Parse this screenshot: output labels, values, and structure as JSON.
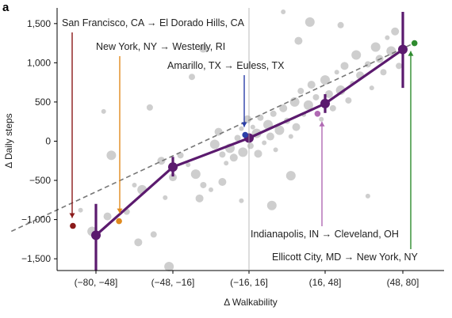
{
  "panel_label": "a",
  "chart_data": {
    "type": "line",
    "title": "",
    "xlabel": "Δ Walkability",
    "ylabel": "Δ Daily steps",
    "categories": [
      "(−80, −48]",
      "(−48, −16]",
      "(−16, 16]",
      "(16, 48]",
      "(48, 80]"
    ],
    "ylim": [
      -1650,
      1700
    ],
    "yticks": [
      -1500,
      -1000,
      -500,
      0,
      500,
      1000,
      1500
    ],
    "ytick_labels": [
      "−1,500",
      "−1,000",
      "−500",
      "0",
      "500",
      "1,000",
      "1,500"
    ],
    "grid": false,
    "series": [
      {
        "values": [
          -1200,
          -330,
          40,
          480,
          1170
        ],
        "ci_low": [
          -1650,
          -450,
          0,
          360,
          680
        ],
        "ci_high": [
          -800,
          -200,
          80,
          600,
          1650
        ],
        "color": "#5b1a6e"
      }
    ],
    "trend_line": {
      "style": "dashed",
      "color": "#777777",
      "x": [
        -1.1,
        4.1
      ],
      "y": [
        -1150,
        1230
      ]
    },
    "annotations": [
      {
        "text": "San Francisco, CA → El Dorado Hills, CA",
        "point": {
          "x": -0.3,
          "y": -1080
        },
        "color": "#8b1a1a"
      },
      {
        "text": "New York, NY → Westerly, RI",
        "point": {
          "x": 0.3,
          "y": -1020
        },
        "color": "#e08a1e"
      },
      {
        "text": "Amarillo, TX → Euless, TX",
        "point": {
          "x": 1.95,
          "y": 80
        },
        "color": "#2b3fa8"
      },
      {
        "text": "Indianapolis, IN → Cleveland, OH",
        "point": {
          "x": 2.9,
          "y": 350
        },
        "color": "#b06ab3"
      },
      {
        "text": "Ellicott City, MD → New York, NY",
        "point": {
          "x": 4.15,
          "y": 1250
        },
        "color": "#2e8b2e"
      }
    ],
    "scatter_background": {
      "color": "#bdbdbd",
      "points": [
        [
          -0.2,
          -880
        ],
        [
          -0.05,
          -1150
        ],
        [
          0.15,
          -960
        ],
        [
          0.4,
          -900
        ],
        [
          0.5,
          -560
        ],
        [
          0.6,
          -620
        ],
        [
          0.55,
          -1290
        ],
        [
          0.75,
          -1190
        ],
        [
          0.9,
          -720
        ],
        [
          0.95,
          -1600
        ],
        [
          1.0,
          -460
        ],
        [
          0.7,
          430
        ],
        [
          0.1,
          380
        ],
        [
          0.2,
          -180
        ],
        [
          0.85,
          -250
        ],
        [
          1.1,
          -180
        ],
        [
          1.2,
          -300
        ],
        [
          1.3,
          -420
        ],
        [
          1.35,
          -730
        ],
        [
          1.4,
          -560
        ],
        [
          1.5,
          -620
        ],
        [
          1.55,
          -40
        ],
        [
          1.6,
          120
        ],
        [
          1.65,
          -170
        ],
        [
          1.7,
          -280
        ],
        [
          1.75,
          -90
        ],
        [
          1.8,
          -210
        ],
        [
          1.85,
          40
        ],
        [
          1.9,
          160
        ],
        [
          1.92,
          -140
        ],
        [
          1.98,
          280
        ],
        [
          2.02,
          -60
        ],
        [
          2.05,
          180
        ],
        [
          2.1,
          100
        ],
        [
          2.12,
          -160
        ],
        [
          2.15,
          300
        ],
        [
          2.2,
          -20
        ],
        [
          2.25,
          210
        ],
        [
          2.28,
          60
        ],
        [
          2.32,
          350
        ],
        [
          2.35,
          -110
        ],
        [
          2.4,
          140
        ],
        [
          2.45,
          420
        ],
        [
          2.5,
          260
        ],
        [
          2.55,
          60
        ],
        [
          2.6,
          500
        ],
        [
          2.62,
          180
        ],
        [
          2.68,
          640
        ],
        [
          2.72,
          340
        ],
        [
          2.78,
          460
        ],
        [
          2.82,
          720
        ],
        [
          2.88,
          560
        ],
        [
          2.95,
          280
        ],
        [
          3.0,
          780
        ],
        [
          3.05,
          600
        ],
        [
          3.1,
          420
        ],
        [
          3.15,
          880
        ],
        [
          3.2,
          650
        ],
        [
          3.25,
          960
        ],
        [
          3.3,
          520
        ],
        [
          3.35,
          740
        ],
        [
          3.4,
          1100
        ],
        [
          3.45,
          840
        ],
        [
          3.55,
          980
        ],
        [
          3.6,
          680
        ],
        [
          3.65,
          1200
        ],
        [
          3.7,
          1050
        ],
        [
          3.75,
          880
        ],
        [
          3.8,
          1320
        ],
        [
          3.85,
          1150
        ],
        [
          3.9,
          1400
        ],
        [
          3.95,
          960
        ],
        [
          2.45,
          1650
        ],
        [
          2.8,
          1520
        ],
        [
          1.4,
          1180
        ],
        [
          3.2,
          1480
        ],
        [
          1.9,
          -760
        ],
        [
          2.55,
          -440
        ],
        [
          1.65,
          -520
        ],
        [
          1.25,
          820
        ],
        [
          3.55,
          -700
        ],
        [
          2.3,
          -820
        ],
        [
          2.65,
          1280
        ]
      ]
    }
  }
}
